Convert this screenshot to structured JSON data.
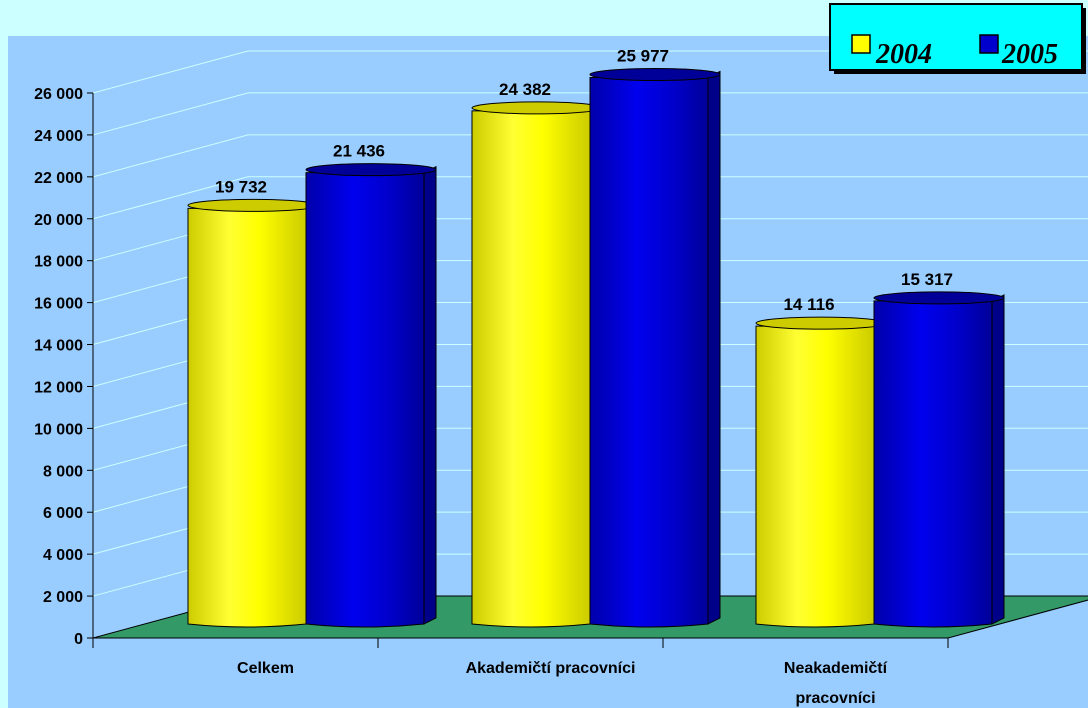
{
  "chart_data": {
    "type": "bar",
    "categories": [
      "Celkem",
      "Akademičtí pracovníci",
      "Neakademičtí\npracovníci"
    ],
    "series": [
      {
        "name": "2004",
        "values": [
          19732,
          24382,
          14116
        ],
        "color": "#ffff00"
      },
      {
        "name": "2005",
        "values": [
          21436,
          25977,
          15317
        ],
        "color": "#0000cc"
      }
    ],
    "data_labels": [
      [
        "19 732",
        "24 382",
        "14 116"
      ],
      [
        "21 436",
        "25 977",
        "15 317"
      ]
    ],
    "ylim": [
      0,
      26000
    ],
    "yticks": [
      0,
      2000,
      4000,
      6000,
      8000,
      10000,
      12000,
      14000,
      16000,
      18000,
      20000,
      22000,
      24000,
      26000
    ],
    "ytick_labels": [
      "0",
      "2 000",
      "4 000",
      "6 000",
      "8 000",
      "10 000",
      "12 000",
      "14 000",
      "16 000",
      "18 000",
      "20 000",
      "22 000",
      "24 000",
      "26 000"
    ],
    "grid": true,
    "legend_position": "top-right",
    "style": "3d-cylinder"
  },
  "colors": {
    "background": "#ccffff",
    "plot_area": "#99ccff",
    "floor": "#339966",
    "legend_bg": "#00ffff"
  }
}
